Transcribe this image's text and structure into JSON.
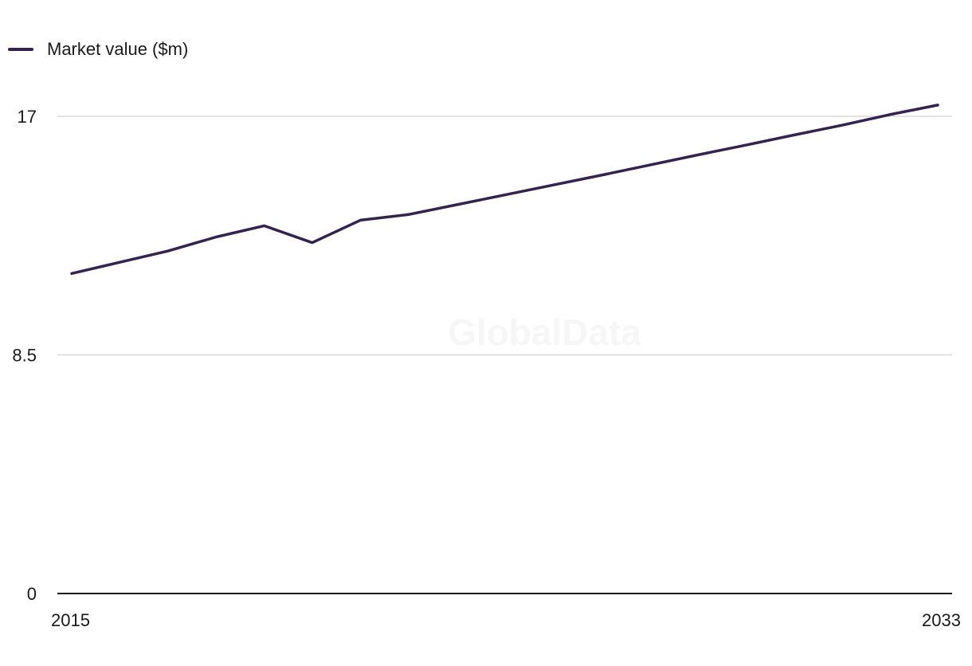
{
  "colors": {
    "series": "#34234f",
    "grid": "#d9d9d9",
    "axis": "#1a1a1a"
  },
  "watermark": "GlobalData",
  "chart_data": {
    "type": "line",
    "x": [
      2015,
      2016,
      2017,
      2018,
      2019,
      2020,
      2021,
      2022,
      2023,
      2024,
      2025,
      2026,
      2027,
      2028,
      2029,
      2030,
      2031,
      2032,
      2033
    ],
    "series": [
      {
        "name": "Market value ($m)",
        "values": [
          11.4,
          11.8,
          12.2,
          12.7,
          13.1,
          12.5,
          13.3,
          13.5,
          13.85,
          14.2,
          14.55,
          14.9,
          15.26,
          15.62,
          15.97,
          16.33,
          16.68,
          17.06,
          17.4
        ],
        "color": "#34234f"
      }
    ],
    "xlabel": "",
    "ylabel": "",
    "ylim": [
      0,
      17
    ],
    "y_ticks": [
      "0",
      "8.5",
      "17"
    ],
    "x_tick_labels": [
      "2015",
      "2033"
    ],
    "grid": true,
    "legend_position": "top-left"
  }
}
